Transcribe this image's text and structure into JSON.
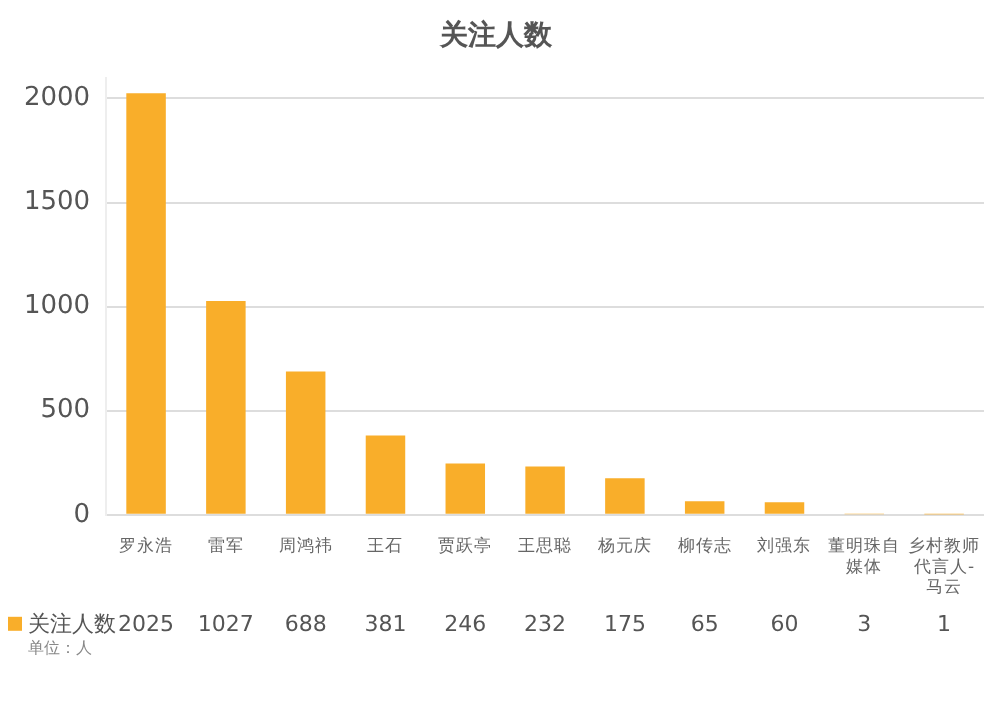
{
  "chart_data": {
    "type": "bar",
    "title": "关注人数",
    "categories": [
      "罗永浩",
      "雷军",
      "周鸿祎",
      "王石",
      "贾跃亭",
      "王思聪",
      "杨元庆",
      "柳传志",
      "刘强东",
      "董明珠自媒体",
      "乡村教师代言人-马云"
    ],
    "series": [
      {
        "name": "关注人数",
        "color": "#f9ae2a",
        "values": [
          2025,
          1027,
          688,
          381,
          246,
          232,
          175,
          65,
          60,
          3,
          1
        ]
      }
    ],
    "ylim": [
      0,
      2100
    ],
    "yticks": [
      0,
      500,
      1000,
      1500,
      2000
    ],
    "grid": "y",
    "data_labels": true,
    "legend": "bottom left",
    "annotations": [
      "单位：人"
    ]
  }
}
